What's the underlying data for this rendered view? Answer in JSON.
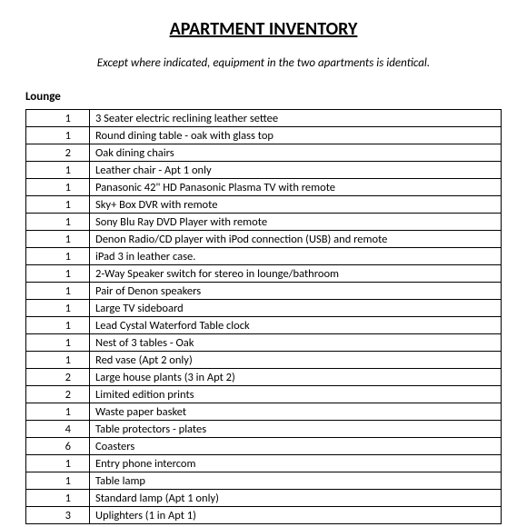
{
  "title": "APARTMENT INVENTORY",
  "subtitle": "Except where indicated, equipment in the two apartments is identical.",
  "section": "Lounge",
  "table": {
    "qty_col_width": 70,
    "border_color": "#000000",
    "background_color": "#ffffff",
    "font_size": 12.5,
    "rows": [
      {
        "qty": "1",
        "desc": "3 Seater electric reclining leather settee"
      },
      {
        "qty": "1",
        "desc": "Round dining table - oak with glass top"
      },
      {
        "qty": "2",
        "desc": "Oak dining chairs"
      },
      {
        "qty": "1",
        "desc": "Leather chair - Apt 1 only"
      },
      {
        "qty": "1",
        "desc": "Panasonic 42\" HD Panasonic Plasma TV with remote"
      },
      {
        "qty": "1",
        "desc": "Sky+ Box DVR with remote"
      },
      {
        "qty": "1",
        "desc": "Sony Blu Ray DVD Player with remote"
      },
      {
        "qty": "1",
        "desc": "Denon Radio/CD player with iPod connection (USB) and remote"
      },
      {
        "qty": "1",
        "desc": "iPad 3 in leather case."
      },
      {
        "qty": "1",
        "desc": "2-Way Speaker switch for stereo in lounge/bathroom"
      },
      {
        "qty": "1",
        "desc": "Pair of Denon speakers"
      },
      {
        "qty": "1",
        "desc": "Large TV sideboard"
      },
      {
        "qty": "1",
        "desc": "Lead Cystal Waterford Table clock"
      },
      {
        "qty": "1",
        "desc": "Nest of 3  tables - Oak"
      },
      {
        "qty": "1",
        "desc": "Red vase (Apt 2 only)"
      },
      {
        "qty": "2",
        "desc": "Large house plants (3 in Apt 2)"
      },
      {
        "qty": "2",
        "desc": "Limited edition prints"
      },
      {
        "qty": "1",
        "desc": "Waste paper basket"
      },
      {
        "qty": "4",
        "desc": "Table protectors - plates"
      },
      {
        "qty": "6",
        "desc": "Coasters"
      },
      {
        "qty": "1",
        "desc": "Entry phone intercom"
      },
      {
        "qty": "1",
        "desc": "Table lamp"
      },
      {
        "qty": "1",
        "desc": "Standard lamp (Apt 1 only)"
      },
      {
        "qty": "3",
        "desc": "Uplighters (1 in Apt 1)"
      }
    ]
  }
}
